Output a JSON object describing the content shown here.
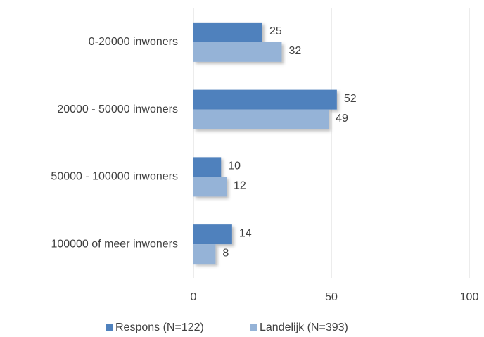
{
  "chart_data": {
    "type": "hbar",
    "categories": [
      "0-20000 inwoners",
      "20000 - 50000 inwoners",
      "50000 - 100000 inwoners",
      "100000 of meer inwoners"
    ],
    "series": [
      {
        "name": "Respons (N=122)",
        "color": "#4f81bd",
        "values": [
          25,
          52,
          10,
          14
        ]
      },
      {
        "name": "Landelijk (N=393)",
        "color": "#95b3d7",
        "values": [
          32,
          49,
          12,
          8
        ]
      }
    ],
    "xlim": [
      0,
      100
    ],
    "xticks": [
      0,
      50,
      100
    ],
    "grid": true,
    "legend": "bottom"
  }
}
